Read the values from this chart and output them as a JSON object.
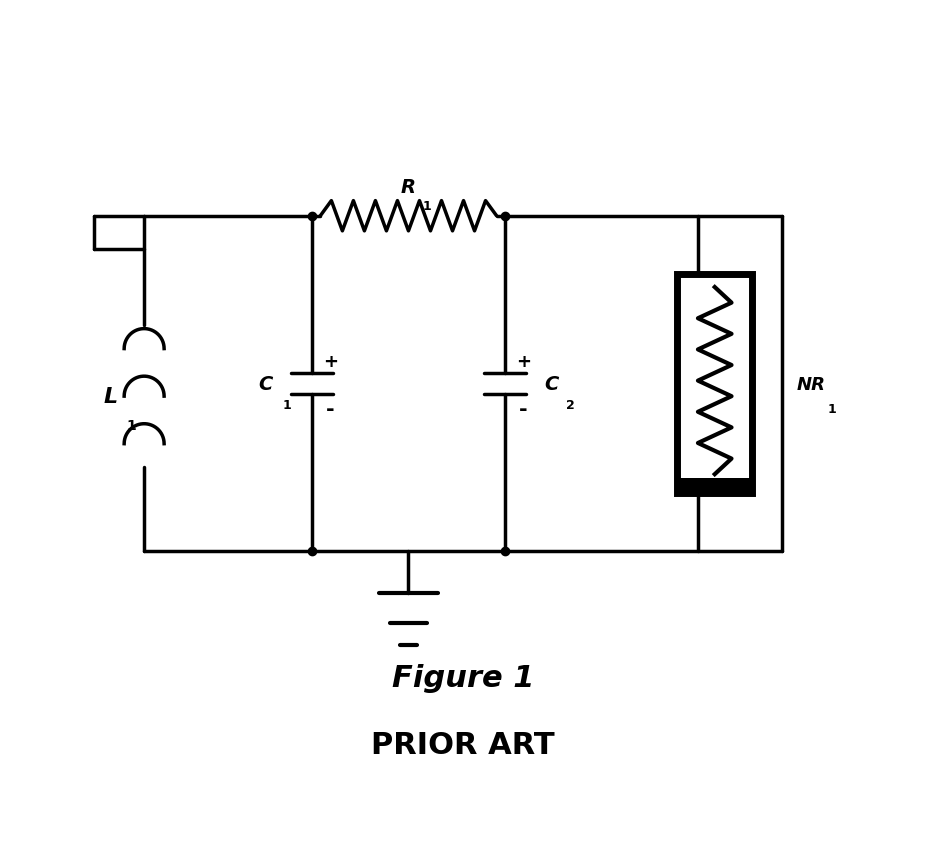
{
  "title1": "Figure 1",
  "title2": "PRIOR ART",
  "label_L1": "L",
  "label_L1_sub": "1",
  "label_C1": "C",
  "label_C1_sub": "1",
  "label_C2": "C",
  "label_C2_sub": "2",
  "label_R1": "R",
  "label_R1_sub": "1",
  "label_NR1": "NR",
  "label_NR1_sub": "1",
  "bg_color": "#ffffff",
  "line_color": "#000000",
  "line_width": 2.5,
  "title1_fontsize": 22,
  "title2_fontsize": 22
}
